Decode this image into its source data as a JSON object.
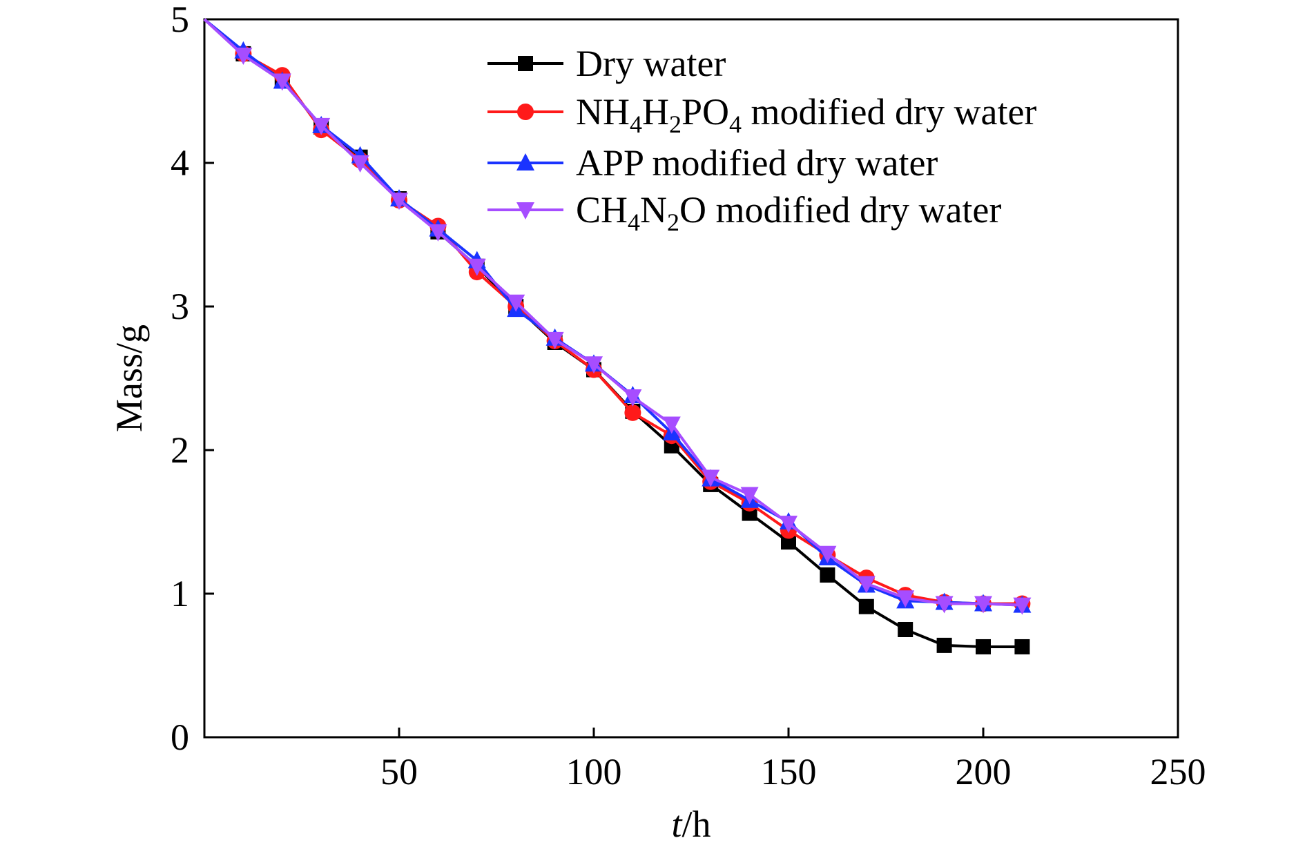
{
  "chart_data": {
    "type": "line",
    "title": "",
    "xlabel_italic": "t",
    "xlabel_unit": "/h",
    "ylabel": "Mass/g",
    "xlim": [
      0,
      250
    ],
    "ylim": [
      0,
      5
    ],
    "xticks": [
      50,
      100,
      150,
      200,
      250
    ],
    "xtick_labels": [
      "50",
      "100",
      "150",
      "200",
      "250"
    ],
    "yticks": [
      0,
      1,
      2,
      3,
      4,
      5
    ],
    "ytick_labels": [
      "0",
      "1",
      "2",
      "3",
      "4",
      "5"
    ],
    "grid": false,
    "legend_position": "top-right",
    "x": [
      0,
      10,
      20,
      30,
      40,
      50,
      60,
      70,
      80,
      90,
      100,
      110,
      120,
      130,
      140,
      150,
      160,
      170,
      180,
      190,
      200,
      210
    ],
    "series": [
      {
        "name": "Dry water",
        "legend_parts": [
          {
            "t": "Dry water",
            "sub": false
          }
        ],
        "color": "#000000",
        "marker": "square",
        "values": [
          5.0,
          4.76,
          4.58,
          4.25,
          4.04,
          3.75,
          3.52,
          3.28,
          3.0,
          2.75,
          2.56,
          2.27,
          2.03,
          1.76,
          1.56,
          1.36,
          1.13,
          0.91,
          0.75,
          0.64,
          0.63,
          0.63
        ]
      },
      {
        "name": "NH4H2PO4 modified dry water",
        "legend_parts": [
          {
            "t": "NH",
            "sub": false
          },
          {
            "t": "4",
            "sub": true
          },
          {
            "t": "H",
            "sub": false
          },
          {
            "t": "2",
            "sub": true
          },
          {
            "t": "PO",
            "sub": false
          },
          {
            "t": "4",
            "sub": true
          },
          {
            "t": " modified dry water",
            "sub": false
          }
        ],
        "color": "#ff1a1a",
        "marker": "circle",
        "values": [
          5.0,
          4.76,
          4.61,
          4.23,
          4.02,
          3.74,
          3.56,
          3.24,
          3.0,
          2.76,
          2.56,
          2.26,
          2.1,
          1.78,
          1.63,
          1.44,
          1.27,
          1.11,
          0.99,
          0.94,
          0.93,
          0.93
        ]
      },
      {
        "name": "APP modified dry water",
        "legend_parts": [
          {
            "t": "APP modified dry water",
            "sub": false
          }
        ],
        "color": "#1a33ff",
        "marker": "triangle-up",
        "values": [
          5.0,
          4.78,
          4.57,
          4.26,
          4.05,
          3.75,
          3.54,
          3.32,
          2.98,
          2.78,
          2.6,
          2.38,
          2.12,
          1.8,
          1.65,
          1.5,
          1.25,
          1.06,
          0.95,
          0.94,
          0.93,
          0.92
        ]
      },
      {
        "name": "CH4N2O modified dry water",
        "legend_parts": [
          {
            "t": "CH",
            "sub": false
          },
          {
            "t": "4",
            "sub": true
          },
          {
            "t": "N",
            "sub": false
          },
          {
            "t": "2",
            "sub": true
          },
          {
            "t": "O modified dry water",
            "sub": false
          }
        ],
        "color": "#a64dff",
        "marker": "triangle-down",
        "values": [
          5.0,
          4.75,
          4.57,
          4.26,
          4.0,
          3.74,
          3.52,
          3.28,
          3.03,
          2.77,
          2.6,
          2.37,
          2.18,
          1.81,
          1.69,
          1.49,
          1.28,
          1.07,
          0.97,
          0.93,
          0.93,
          0.92
        ]
      }
    ]
  }
}
